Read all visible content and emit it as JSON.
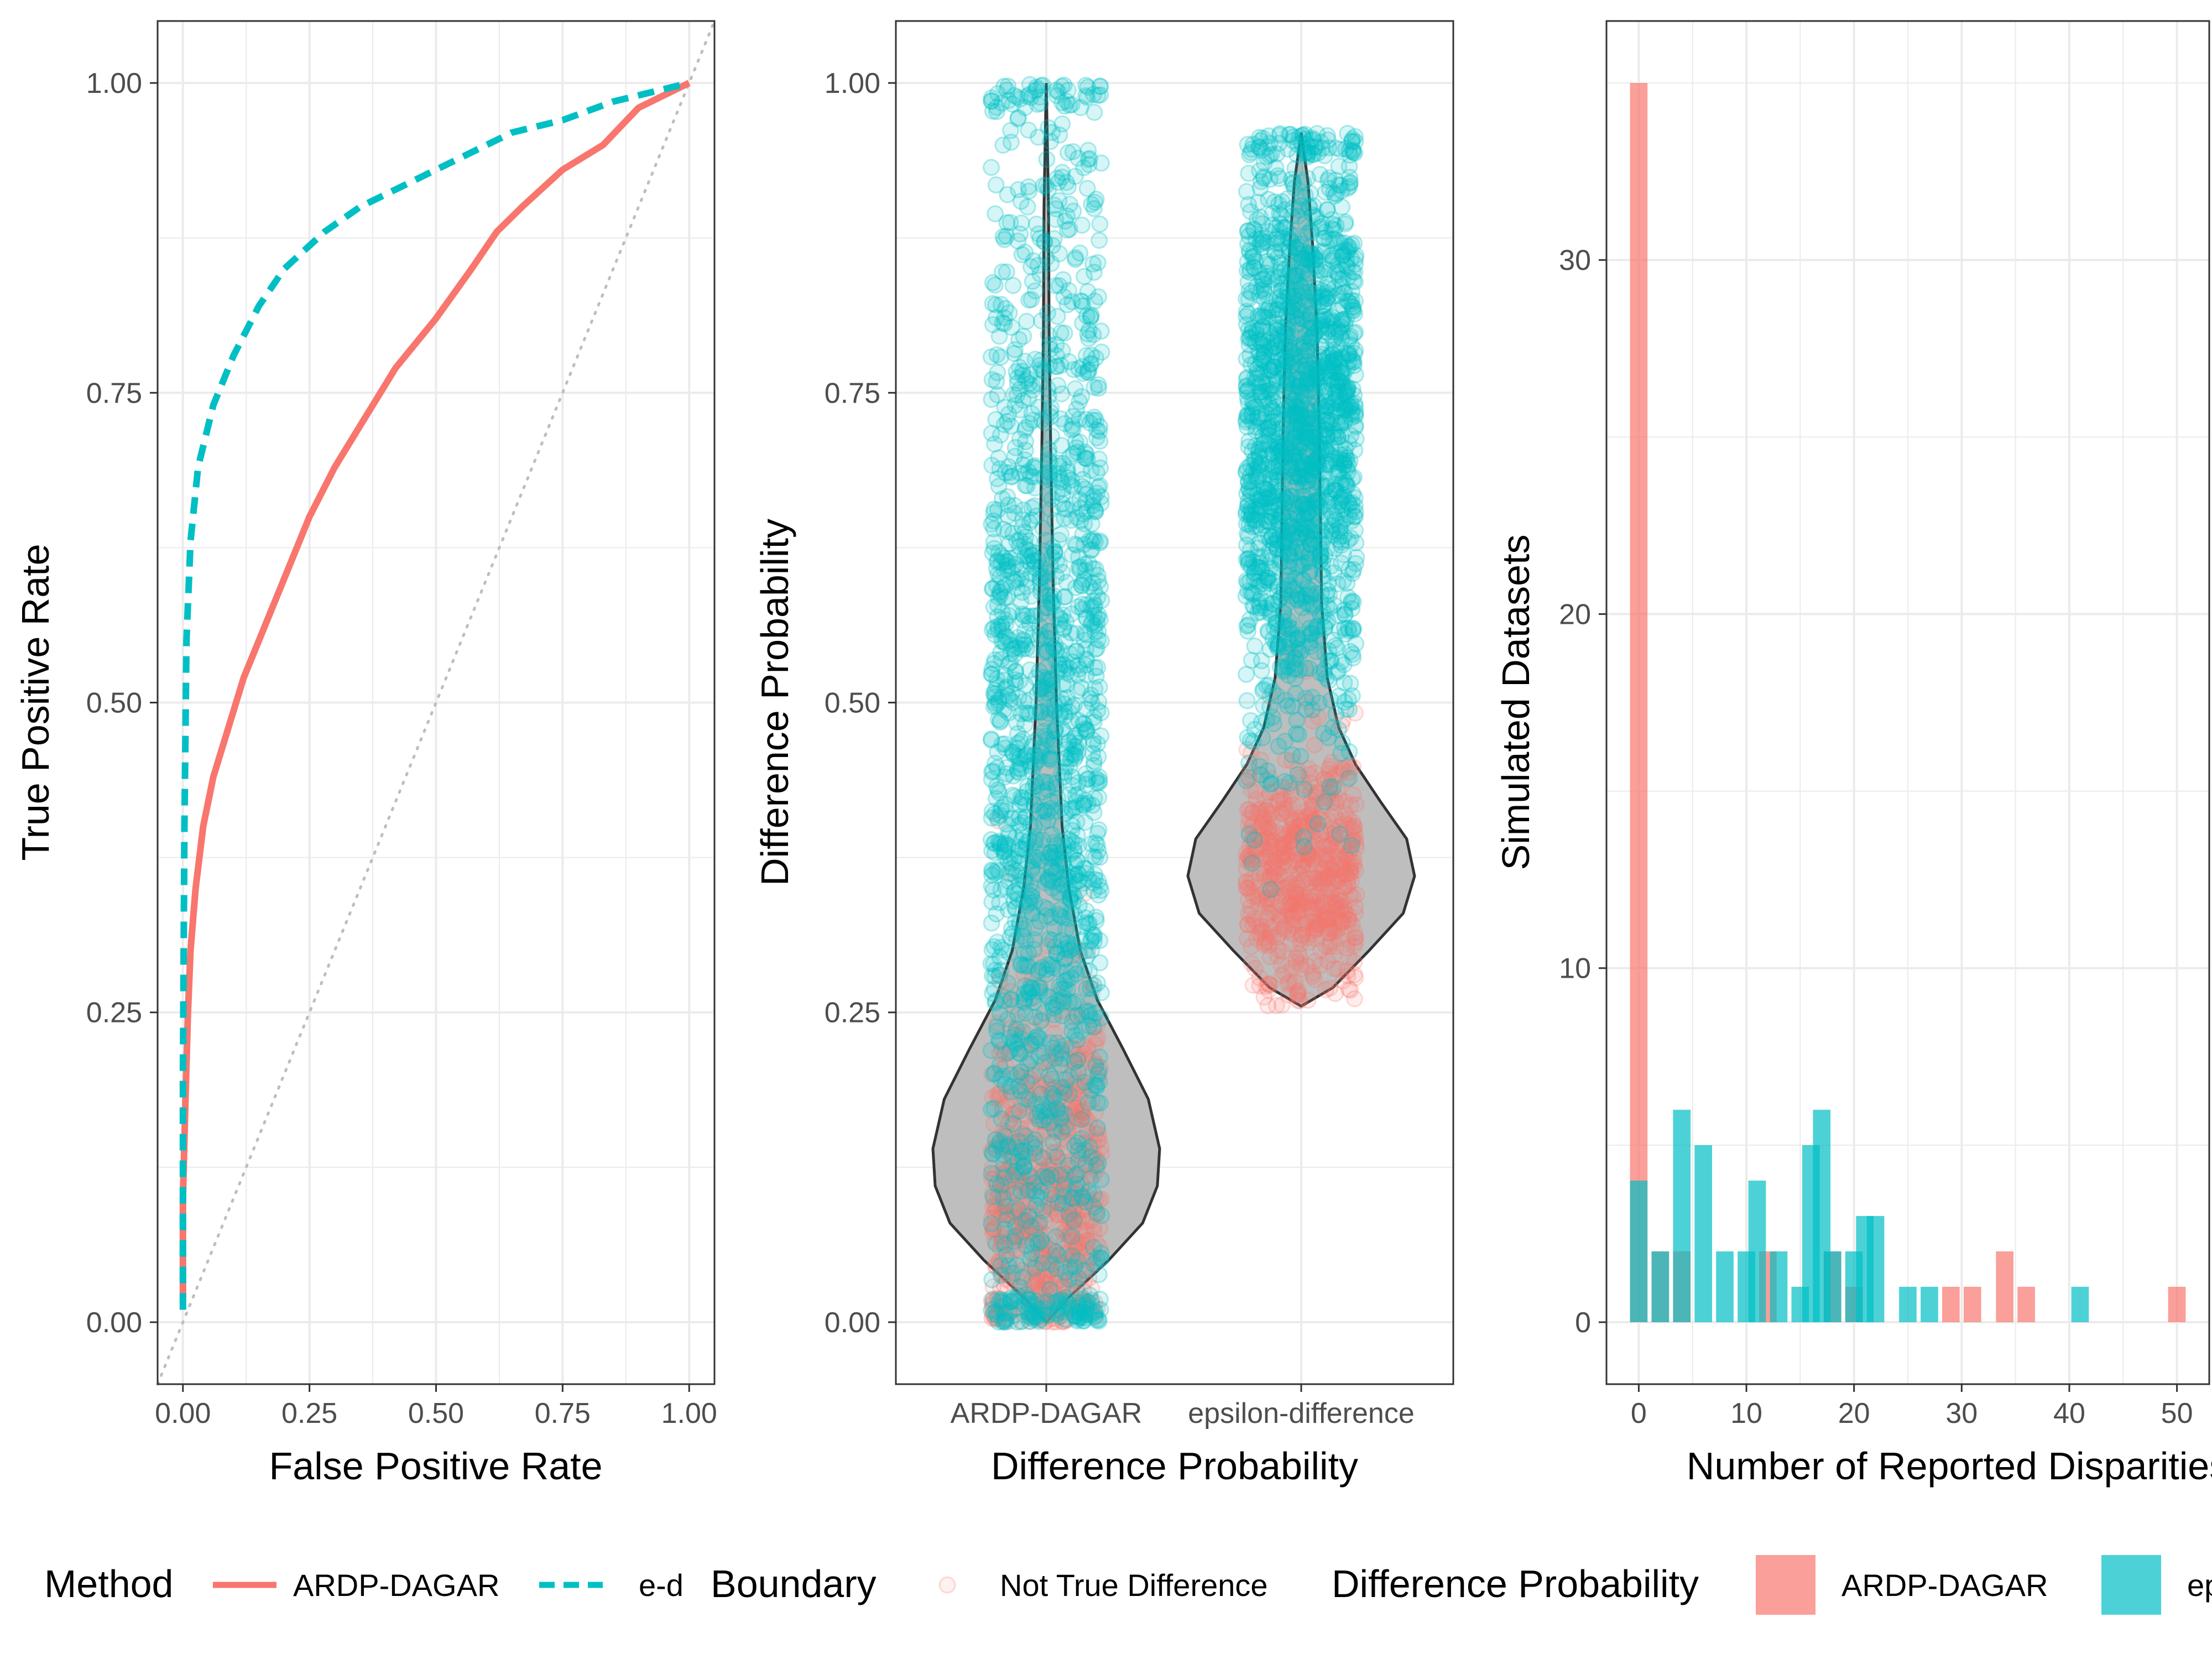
{
  "colors": {
    "ardp": "#F8766D",
    "ed": "#00BFC4",
    "grid": "#EBEBEB",
    "violin_fill": "#BEBEBE",
    "diagonal": "#BEBEBE"
  },
  "chart_data": [
    {
      "type": "line",
      "xlabel": "False Positive Rate",
      "ylabel": "True Positive Rate",
      "xlim": [
        -0.05,
        1.05
      ],
      "ylim": [
        -0.05,
        1.05
      ],
      "x_ticks": [
        "0.00",
        "0.25",
        "0.50",
        "0.75",
        "1.00"
      ],
      "y_ticks": [
        "0.00",
        "0.25",
        "0.50",
        "0.75",
        "1.00"
      ],
      "grid": true,
      "reference_line": "diagonal",
      "series": [
        {
          "name": "ARDP-DAGAR",
          "style": "solid",
          "points": [
            [
              0,
              0.02
            ],
            [
              0,
              0.1
            ],
            [
              0.005,
              0.18
            ],
            [
              0.01,
              0.25
            ],
            [
              0.015,
              0.3
            ],
            [
              0.025,
              0.35
            ],
            [
              0.04,
              0.4
            ],
            [
              0.06,
              0.44
            ],
            [
              0.09,
              0.48
            ],
            [
              0.12,
              0.52
            ],
            [
              0.15,
              0.55
            ],
            [
              0.2,
              0.6
            ],
            [
              0.25,
              0.65
            ],
            [
              0.3,
              0.69
            ],
            [
              0.36,
              0.73
            ],
            [
              0.42,
              0.77
            ],
            [
              0.5,
              0.81
            ],
            [
              0.57,
              0.85
            ],
            [
              0.62,
              0.88
            ],
            [
              0.67,
              0.9
            ],
            [
              0.75,
              0.93
            ],
            [
              0.83,
              0.95
            ],
            [
              0.9,
              0.98
            ],
            [
              1.0,
              1.0
            ]
          ]
        },
        {
          "name": "e-d",
          "style": "dashed",
          "points": [
            [
              0,
              0.01
            ],
            [
              0,
              0.2
            ],
            [
              0.003,
              0.4
            ],
            [
              0.007,
              0.55
            ],
            [
              0.015,
              0.63
            ],
            [
              0.03,
              0.69
            ],
            [
              0.06,
              0.74
            ],
            [
              0.1,
              0.78
            ],
            [
              0.15,
              0.82
            ],
            [
              0.2,
              0.85
            ],
            [
              0.28,
              0.88
            ],
            [
              0.35,
              0.9
            ],
            [
              0.45,
              0.92
            ],
            [
              0.55,
              0.94
            ],
            [
              0.65,
              0.96
            ],
            [
              0.75,
              0.97
            ],
            [
              0.85,
              0.985
            ],
            [
              1.0,
              1.0
            ]
          ]
        }
      ]
    },
    {
      "type": "violin",
      "xlabel": "Difference Probability",
      "ylabel": "Difference Probability",
      "categories": [
        "ARDP-DAGAR",
        "epsilon-difference"
      ],
      "ylim": [
        -0.05,
        1.05
      ],
      "y_ticks": [
        "0.00",
        "0.25",
        "0.50",
        "0.75",
        "1.00"
      ],
      "grid": true,
      "groups": [
        {
          "category": "ARDP-DAGAR",
          "range": [
            0.0,
            1.0
          ],
          "density": [
            [
              0.0,
              0.0
            ],
            [
              0.02,
              0.2
            ],
            [
              0.05,
              0.55
            ],
            [
              0.08,
              0.85
            ],
            [
              0.11,
              0.98
            ],
            [
              0.14,
              1.0
            ],
            [
              0.18,
              0.9
            ],
            [
              0.22,
              0.68
            ],
            [
              0.26,
              0.45
            ],
            [
              0.3,
              0.3
            ],
            [
              0.35,
              0.2
            ],
            [
              0.4,
              0.14
            ],
            [
              0.5,
              0.09
            ],
            [
              0.6,
              0.06
            ],
            [
              0.7,
              0.04
            ],
            [
              0.8,
              0.025
            ],
            [
              0.9,
              0.02
            ],
            [
              1.0,
              0.0
            ]
          ],
          "points_true_diff": {
            "center": 0.45,
            "spread": 0.28
          },
          "points_not_true_diff": {
            "center": 0.1,
            "spread": 0.08
          }
        },
        {
          "category": "epsilon-difference",
          "range": [
            0.255,
            0.96
          ],
          "density": [
            [
              0.255,
              0.0
            ],
            [
              0.27,
              0.28
            ],
            [
              0.3,
              0.6
            ],
            [
              0.33,
              0.9
            ],
            [
              0.36,
              1.0
            ],
            [
              0.39,
              0.93
            ],
            [
              0.42,
              0.7
            ],
            [
              0.45,
              0.48
            ],
            [
              0.48,
              0.33
            ],
            [
              0.52,
              0.23
            ],
            [
              0.58,
              0.18
            ],
            [
              0.65,
              0.17
            ],
            [
              0.72,
              0.16
            ],
            [
              0.8,
              0.14
            ],
            [
              0.87,
              0.1
            ],
            [
              0.92,
              0.06
            ],
            [
              0.96,
              0.0
            ]
          ],
          "points_true_diff": {
            "center": 0.72,
            "spread": 0.12
          },
          "points_not_true_diff": {
            "center": 0.36,
            "spread": 0.05
          }
        }
      ]
    },
    {
      "type": "histogram",
      "xlabel": "Number of Reported Disparities",
      "ylabel": "Simulated Datasets",
      "xlim": [
        -3,
        53
      ],
      "ylim": [
        -1.75,
        36.75
      ],
      "x_ticks": [
        "0",
        "10",
        "20",
        "30",
        "40",
        "50"
      ],
      "y_ticks": [
        "0",
        "10",
        "20",
        "30"
      ],
      "grid": true,
      "bin_width": 1.63,
      "series": [
        {
          "name": "ARDP-DAGAR",
          "bins": [
            [
              0,
              35
            ],
            [
              2,
              2
            ],
            [
              4,
              2
            ],
            [
              12,
              2
            ],
            [
              18,
              2
            ],
            [
              20,
              1
            ],
            [
              29,
              1
            ],
            [
              31,
              1
            ],
            [
              34,
              2
            ],
            [
              36,
              1
            ],
            [
              50,
              1
            ]
          ]
        },
        {
          "name": "epsilon-difference",
          "bins": [
            [
              0,
              4
            ],
            [
              2,
              2
            ],
            [
              4,
              6
            ],
            [
              6,
              5
            ],
            [
              8,
              2
            ],
            [
              10,
              2
            ],
            [
              11,
              4
            ],
            [
              13,
              2
            ],
            [
              15,
              1
            ],
            [
              16,
              5
            ],
            [
              17,
              6
            ],
            [
              18,
              2
            ],
            [
              20,
              2
            ],
            [
              21,
              3
            ],
            [
              22,
              3
            ],
            [
              25,
              1
            ],
            [
              27,
              1
            ],
            [
              41,
              1
            ]
          ]
        }
      ]
    }
  ],
  "legend": {
    "method": {
      "title": "Method",
      "items": [
        {
          "label": "ARDP-DAGAR"
        },
        {
          "label": "e-d"
        }
      ]
    },
    "boundary": {
      "title": "Boundary",
      "items": [
        {
          "label": "Not True Difference"
        }
      ]
    },
    "difference_probability": {
      "title": "Difference Probability",
      "items": [
        {
          "label": "ARDP-DAGAR"
        },
        {
          "label": "epsilon-difference"
        }
      ]
    }
  }
}
